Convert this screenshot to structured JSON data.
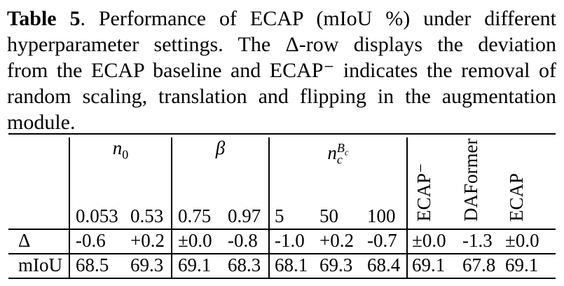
{
  "caption": {
    "label": "Table 5",
    "lines": [
      ".  Performance of ECAP (mIoU %) under different",
      "hyperparameter settings.  The Δ-row displays the deviation",
      "from the ECAP baseline and ECAP⁻ indicates the removal of",
      "random scaling, translation and flipping in the augmentation",
      "module."
    ]
  },
  "table": {
    "groups": {
      "n0_base": "n",
      "n0_sub": "0",
      "beta": "β",
      "nc_base": "n",
      "nc_sub": "c",
      "nc_sup": "B",
      "nc_supsub": "c"
    },
    "rotated_headers": [
      "ECAP⁻",
      "DAFormer",
      "ECAP"
    ],
    "sub_headers": [
      "0.053",
      "0.53",
      "0.75",
      "0.97",
      "5",
      "50",
      "100"
    ],
    "rows": [
      {
        "label": "Δ",
        "values": [
          "-0.6",
          "+0.2",
          "±0.0",
          "-0.8",
          "-1.0",
          "+0.2",
          "-0.7",
          "±0.0",
          "-1.3",
          "±0.0"
        ]
      },
      {
        "label": "mIoU",
        "values": [
          "68.5",
          "69.3",
          "69.1",
          "68.3",
          "68.1",
          "69.3",
          "68.4",
          "69.1",
          "67.8",
          "69.1"
        ]
      }
    ]
  }
}
